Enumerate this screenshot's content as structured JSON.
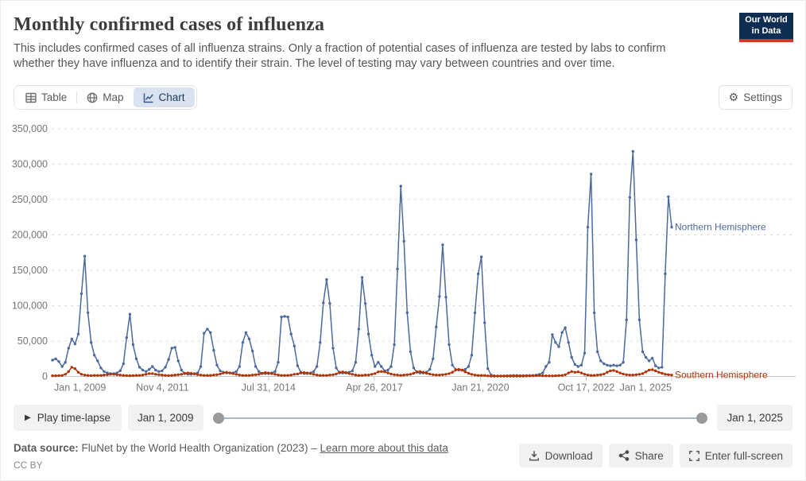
{
  "header": {
    "title": "Monthly confirmed cases of influenza",
    "subtitle": "This includes confirmed cases of all influenza strains. Only a fraction of potential cases of influenza are tested by labs to confirm whether they have influenza and to identify their strain. The level of testing may vary between countries and over time.",
    "logo_line1": "Our World",
    "logo_line2": "in Data"
  },
  "tabs": {
    "table": "Table",
    "map": "Map",
    "chart": "Chart"
  },
  "controls": {
    "settings": "Settings"
  },
  "timeline": {
    "play_label": "Play time-lapse",
    "start": "Jan 1, 2009",
    "end": "Jan 1, 2025"
  },
  "footer": {
    "source_label": "Data source:",
    "source_text": "FluNet by the World Health Organization (2023) –",
    "learn_more": "Learn more about this data",
    "license": "CC BY",
    "download": "Download",
    "share": "Share",
    "fullscreen": "Enter full-screen"
  },
  "colors": {
    "accent_blue": "#4C6A9C",
    "accent_red": "#B13507",
    "logo_navy": "#0d2e52",
    "logo_red": "#d8352a",
    "active_tab_bg": "#d9e2ef",
    "active_tab_text": "#1d3d63",
    "gridline": "#d9d9d9",
    "axis_text": "#757575"
  },
  "chart_data": {
    "type": "line",
    "title": "Monthly confirmed cases of influenza",
    "xlabel": "",
    "ylabel": "",
    "x_start": "Jan 2009",
    "x_end": "Jan 2025",
    "months": 193,
    "ylim": [
      0,
      350000
    ],
    "grid": true,
    "legend_position": "line-end-labels",
    "y_ticks": [
      {
        "label": "0",
        "value": 0
      },
      {
        "label": "50,000",
        "value": 50000
      },
      {
        "label": "100,000",
        "value": 100000
      },
      {
        "label": "150,000",
        "value": 150000
      },
      {
        "label": "200,000",
        "value": 200000
      },
      {
        "label": "250,000",
        "value": 250000
      },
      {
        "label": "300,000",
        "value": 300000
      },
      {
        "label": "350,000",
        "value": 350000
      }
    ],
    "x_ticks": [
      {
        "label": "Jan 1, 2009",
        "m": 0,
        "anchor": "start"
      },
      {
        "label": "Nov 4, 2011",
        "m": 34.1,
        "anchor": "middle"
      },
      {
        "label": "Jul 31, 2014",
        "m": 67.0,
        "anchor": "middle"
      },
      {
        "label": "Apr 26, 2017",
        "m": 99.8,
        "anchor": "middle"
      },
      {
        "label": "Jan 21, 2020",
        "m": 132.7,
        "anchor": "middle"
      },
      {
        "label": "Oct 17, 2022",
        "m": 165.5,
        "anchor": "middle"
      },
      {
        "label": "Jan 1, 2025",
        "m": 192,
        "anchor": "end"
      }
    ],
    "series": [
      {
        "name": "Northern Hemisphere",
        "color": "#4C6A9C",
        "values": [
          23000,
          25000,
          21000,
          14000,
          20000,
          40000,
          53000,
          46000,
          60000,
          117000,
          170000,
          90000,
          48000,
          30000,
          22000,
          12000,
          7000,
          5000,
          4000,
          4000,
          5000,
          8000,
          18000,
          55000,
          88000,
          45000,
          25000,
          13000,
          9000,
          7000,
          10000,
          14000,
          9000,
          7000,
          8000,
          13000,
          24000,
          40000,
          41000,
          22000,
          9000,
          4000,
          3000,
          3000,
          4000,
          5000,
          14000,
          61000,
          67000,
          62000,
          37000,
          16000,
          8000,
          6000,
          5000,
          5000,
          5000,
          7000,
          14000,
          48000,
          62000,
          53000,
          36000,
          14000,
          7000,
          4000,
          4000,
          4000,
          5000,
          7000,
          20000,
          84000,
          85000,
          84000,
          60000,
          43000,
          15000,
          6000,
          4000,
          4000,
          5000,
          7000,
          14000,
          48000,
          104000,
          137000,
          103000,
          40000,
          12000,
          5000,
          5000,
          5000,
          6000,
          8000,
          20000,
          67000,
          140000,
          103000,
          60000,
          30000,
          14000,
          20000,
          14000,
          8000,
          9000,
          14000,
          45000,
          152000,
          269000,
          191000,
          90000,
          35000,
          12000,
          6000,
          5000,
          5000,
          6000,
          10000,
          25000,
          70000,
          113000,
          186000,
          112000,
          45000,
          16000,
          10000,
          9000,
          9000,
          10000,
          14000,
          30000,
          90000,
          145000,
          169000,
          76000,
          11000,
          2000,
          1000,
          800,
          800,
          900,
          1000,
          1200,
          1500,
          1500,
          1200,
          1200,
          1300,
          1400,
          1500,
          2000,
          3000,
          5000,
          14000,
          20000,
          59000,
          48000,
          42000,
          62000,
          69000,
          48000,
          27000,
          17000,
          14000,
          16000,
          33000,
          211000,
          286000,
          90000,
          35000,
          22000,
          18000,
          16000,
          15000,
          16000,
          15000,
          16000,
          20000,
          80000,
          253000,
          318000,
          193000,
          80000,
          35000,
          27000,
          22000,
          26000,
          15000,
          12000,
          13000,
          145000,
          254000,
          211000
        ]
      },
      {
        "name": "Southern Hemisphere",
        "color": "#B13507",
        "values": [
          1000,
          1000,
          1200,
          1500,
          3000,
          7000,
          13000,
          11000,
          6000,
          3000,
          2000,
          1500,
          1200,
          1500,
          1500,
          1500,
          2000,
          2500,
          3000,
          3000,
          2500,
          2000,
          1500,
          1200,
          1000,
          1200,
          1500,
          1500,
          2000,
          3000,
          4000,
          4000,
          3000,
          2500,
          2000,
          1500,
          1200,
          1500,
          2000,
          2500,
          3000,
          4500,
          5000,
          4500,
          3500,
          2500,
          2000,
          1500,
          1500,
          1500,
          2000,
          2500,
          3500,
          5000,
          6000,
          5000,
          4000,
          3000,
          2000,
          1500,
          1500,
          1500,
          2000,
          2500,
          3000,
          4500,
          5500,
          5000,
          4000,
          3000,
          2000,
          1500,
          1500,
          1500,
          2000,
          3000,
          3500,
          5000,
          5500,
          5000,
          4000,
          3000,
          2000,
          1500,
          1500,
          1500,
          2000,
          2500,
          3500,
          6000,
          6500,
          5500,
          4000,
          3000,
          2000,
          1500,
          1500,
          2000,
          2000,
          3000,
          4000,
          6500,
          7000,
          6500,
          5000,
          3500,
          2500,
          2000,
          1500,
          2000,
          2500,
          3000,
          4500,
          6500,
          7000,
          6000,
          4500,
          3500,
          2500,
          2000,
          2000,
          2500,
          3000,
          4000,
          6000,
          9000,
          10000,
          9000,
          6500,
          4500,
          3000,
          2000,
          1500,
          1500,
          1500,
          800,
          500,
          500,
          500,
          500,
          500,
          500,
          500,
          500,
          500,
          500,
          600,
          700,
          800,
          1000,
          1200,
          1200,
          1000,
          900,
          800,
          800,
          1000,
          1200,
          1500,
          2500,
          5000,
          7000,
          6000,
          6500,
          5000,
          3000,
          2000,
          1500,
          1500,
          2000,
          2500,
          3500,
          6000,
          8000,
          8500,
          7000,
          5000,
          3500,
          2500,
          2000,
          2000,
          2500,
          3000,
          4000,
          6500,
          9000,
          9500,
          8000,
          6000,
          4500,
          3000,
          2500,
          2000
        ]
      }
    ]
  }
}
